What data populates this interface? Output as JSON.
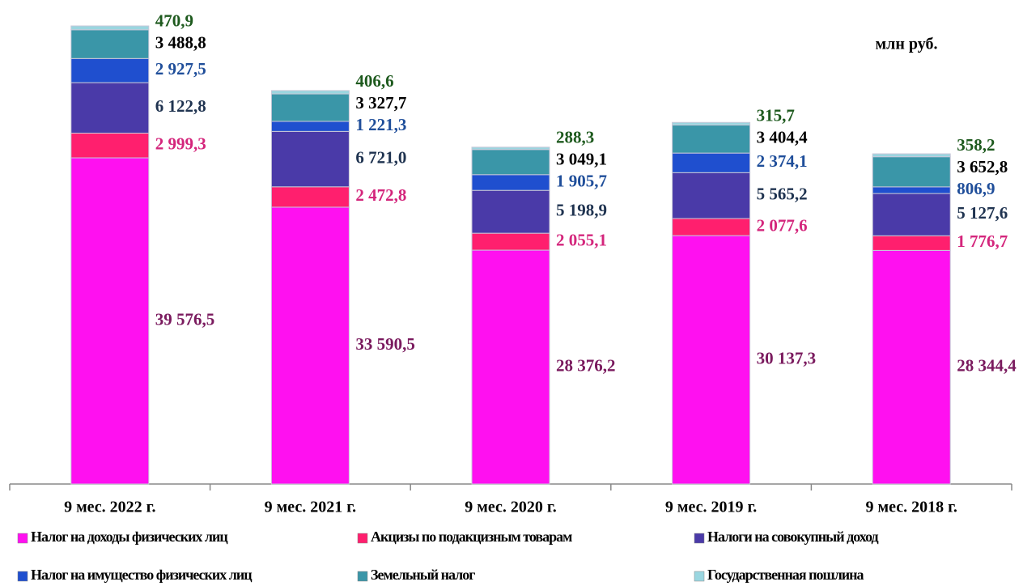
{
  "chart_data": {
    "type": "stacked_bar",
    "annotation": "млн руб.",
    "categories": [
      "9 мес. 2022 г.",
      "9 мес. 2021 г.",
      "9 мес. 2020 г.",
      "9 мес. 2019 г.",
      "9 мес. 2018 г."
    ],
    "legend_position": "bottom",
    "series": [
      {
        "name": "Налог на доходы физических лиц",
        "color": "#ff10f0",
        "label_color": "#7a1a5e",
        "values": [
          39576.5,
          33590.5,
          28376.2,
          30137.3,
          28344.4
        ],
        "value_labels": [
          "39 576,5",
          "33 590,5",
          "28 376,2",
          "30 137,3",
          "28 344,4"
        ]
      },
      {
        "name": "Акцизы по подакцизным товарам",
        "color": "#ff1f6e",
        "label_color": "#d4267c",
        "values": [
          2999.3,
          2472.8,
          2055.1,
          2077.6,
          1776.7
        ],
        "value_labels": [
          "2 999,3",
          "2 472,8",
          "2 055,1",
          "2 077,6",
          "1 776,7"
        ]
      },
      {
        "name": "Налоги на совокупный доход",
        "color": "#4a3aa8",
        "label_color": "#1f3350",
        "values": [
          6122.8,
          6721.0,
          5198.9,
          5565.2,
          5127.6
        ],
        "value_labels": [
          "6 122,8",
          "6 721,0",
          "5 198,9",
          "5 565,2",
          "5 127,6"
        ]
      },
      {
        "name": "Налог на имущество физических лиц",
        "color": "#1f4fcf",
        "label_color": "#1f4e9a",
        "values": [
          2927.5,
          1221.3,
          1905.7,
          2374.1,
          806.9
        ],
        "value_labels": [
          "2 927,5",
          "1 221,3",
          "1 905,7",
          "2 374,1",
          "806,9"
        ]
      },
      {
        "name": "Земельный налог",
        "color": "#3a96a8",
        "label_color": "#000000",
        "values": [
          3488.8,
          3327.7,
          3049.1,
          3404.4,
          3652.8
        ],
        "value_labels": [
          "3 488,8",
          "3 327,7",
          "3 049,1",
          "3 404,4",
          "3 652,8"
        ]
      },
      {
        "name": "Государственная пошлина",
        "color": "#9ad6e0",
        "label_color": "#1e5a1e",
        "values": [
          470.9,
          406.6,
          288.3,
          315.7,
          358.2
        ],
        "value_labels": [
          "470,9",
          "406,6",
          "288,3",
          "315,7",
          "358,2"
        ]
      }
    ]
  }
}
